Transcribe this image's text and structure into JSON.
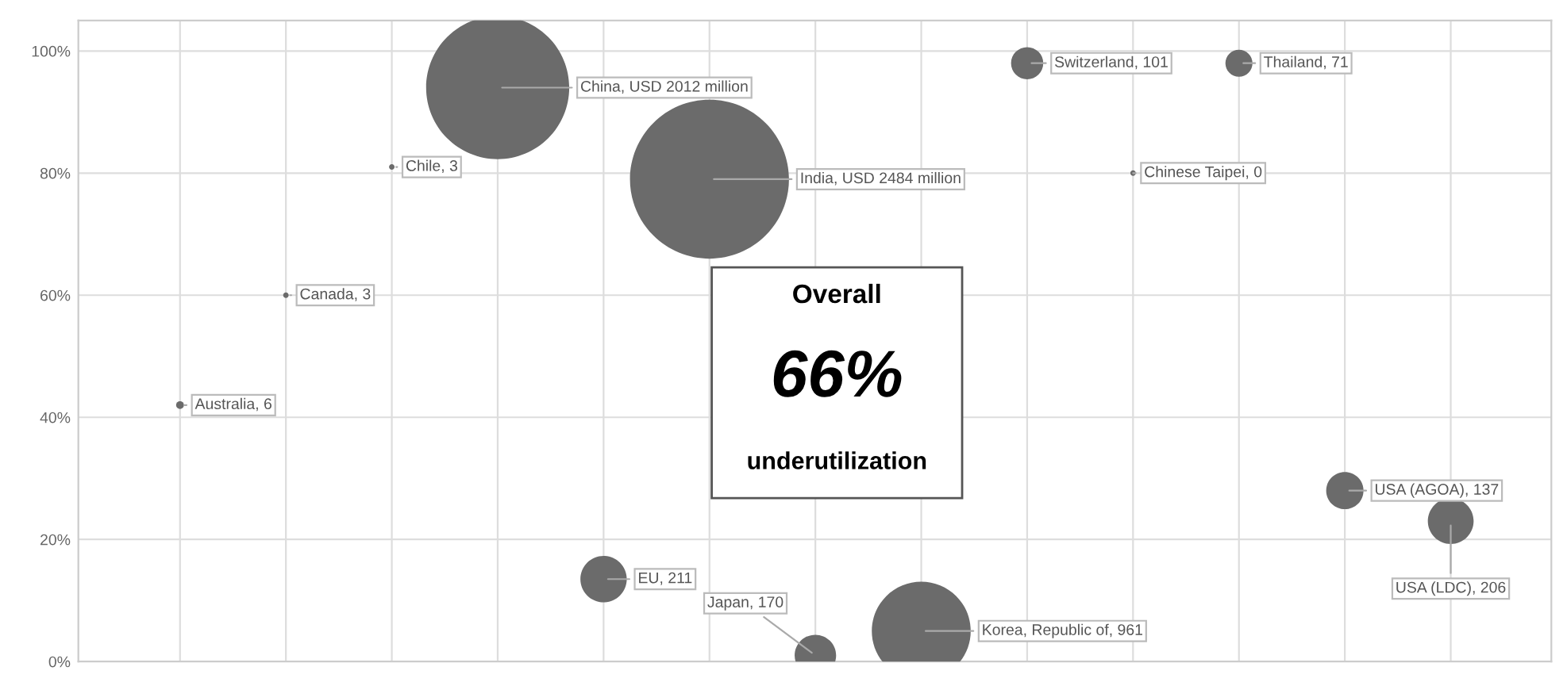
{
  "chart_data": {
    "type": "bubble",
    "categories": [
      null,
      null,
      null,
      null,
      null,
      null,
      null,
      null,
      null,
      null,
      null,
      null,
      null
    ],
    "series": [
      {
        "name": "Australia, 6",
        "color": "#6b6b6b",
        "values": [
          42,
          null,
          null,
          null,
          null,
          null,
          null,
          null,
          null,
          null,
          null,
          null,
          null
        ],
        "sizes": [
          0.0024,
          null,
          null,
          null,
          null,
          null,
          null,
          null,
          null,
          null,
          null,
          null,
          null
        ]
      },
      {
        "name": "Canada, 3",
        "color": "#6b6b6b",
        "values": [
          null,
          60,
          null,
          null,
          null,
          null,
          null,
          null,
          null,
          null,
          null,
          null,
          null
        ],
        "sizes": [
          null,
          0.0012,
          null,
          null,
          null,
          null,
          null,
          null,
          null,
          null,
          null,
          null,
          null
        ]
      },
      {
        "name": "Chile, 3",
        "color": "#6b6b6b",
        "values": [
          null,
          null,
          81,
          null,
          null,
          null,
          null,
          null,
          null,
          null,
          null,
          null,
          null
        ],
        "sizes": [
          null,
          null,
          0.0012,
          null,
          null,
          null,
          null,
          null,
          null,
          null,
          null,
          null,
          null
        ]
      },
      {
        "name": "China, USD 2012 million",
        "color": "#6b6b6b",
        "values": [
          null,
          null,
          null,
          94,
          null,
          null,
          null,
          null,
          null,
          null,
          null,
          null,
          null
        ],
        "sizes": [
          null,
          null,
          null,
          0.81,
          null,
          null,
          null,
          null,
          null,
          null,
          null,
          null,
          null
        ]
      },
      {
        "name": "EU, 211",
        "color": "#6b6b6b",
        "values": [
          null,
          null,
          null,
          null,
          13.5,
          null,
          null,
          null,
          null,
          null,
          null,
          null,
          null
        ],
        "sizes": [
          null,
          null,
          null,
          null,
          0.085,
          null,
          null,
          null,
          null,
          null,
          null,
          null,
          null
        ]
      },
      {
        "name": "India, USD 2484 million",
        "color": "#6b6b6b",
        "values": [
          null,
          null,
          null,
          null,
          null,
          79,
          null,
          null,
          null,
          null,
          null,
          null,
          null
        ],
        "sizes": [
          null,
          null,
          null,
          null,
          null,
          1,
          null,
          null,
          null,
          null,
          null,
          null,
          null
        ]
      },
      {
        "name": "Japan, 170",
        "color": "#6b6b6b",
        "values": [
          null,
          null,
          null,
          null,
          null,
          null,
          1,
          null,
          null,
          null,
          null,
          null,
          null
        ],
        "sizes": [
          null,
          null,
          null,
          null,
          null,
          null,
          0.068,
          null,
          null,
          null,
          null,
          null,
          null
        ]
      },
      {
        "name": "Korea, Republic of, 961",
        "color": "#6b6b6b",
        "values": [
          null,
          null,
          null,
          null,
          null,
          null,
          null,
          5,
          null,
          null,
          null,
          null,
          null
        ],
        "sizes": [
          null,
          null,
          null,
          null,
          null,
          null,
          null,
          0.387,
          null,
          null,
          null,
          null,
          null
        ]
      },
      {
        "name": "Switzerland, 101",
        "color": "#6b6b6b",
        "values": [
          null,
          null,
          null,
          null,
          null,
          null,
          null,
          null,
          98,
          null,
          null,
          null,
          null
        ],
        "sizes": [
          null,
          null,
          null,
          null,
          null,
          null,
          null,
          null,
          0.041,
          null,
          null,
          null,
          null
        ]
      },
      {
        "name": "Chinese Taipei, 0",
        "color": "#6b6b6b",
        "values": [
          null,
          null,
          null,
          null,
          null,
          null,
          null,
          null,
          null,
          80,
          null,
          null,
          null
        ],
        "sizes": [
          null,
          null,
          null,
          null,
          null,
          null,
          null,
          null,
          null,
          null,
          null,
          null,
          null
        ]
      },
      {
        "name": "Thailand, 71",
        "color": "#6b6b6b",
        "values": [
          null,
          null,
          null,
          null,
          null,
          null,
          null,
          null,
          null,
          null,
          98,
          null,
          null
        ],
        "sizes": [
          null,
          null,
          null,
          null,
          null,
          null,
          null,
          null,
          null,
          null,
          0.029,
          null,
          null
        ]
      },
      {
        "name": "USA (AGOA), 137",
        "color": "#6b6b6b",
        "values": [
          null,
          null,
          null,
          null,
          null,
          null,
          null,
          null,
          null,
          null,
          null,
          28,
          null
        ],
        "sizes": [
          null,
          null,
          null,
          null,
          null,
          null,
          null,
          null,
          null,
          null,
          null,
          0.055,
          null
        ]
      },
      {
        "name": "USA (LDC), 206",
        "color": "#6b6b6b",
        "values": [
          null,
          null,
          null,
          null,
          null,
          null,
          null,
          null,
          null,
          null,
          null,
          null,
          23
        ],
        "sizes": [
          null,
          null,
          null,
          null,
          null,
          null,
          null,
          null,
          null,
          null,
          null,
          null,
          0.083
        ]
      }
    ],
    "ylim": [
      0,
      105
    ],
    "yticks": [
      {
        "value": 0,
        "label": "0%"
      },
      {
        "value": 20,
        "label": "20%"
      },
      {
        "value": 40,
        "label": "40%"
      },
      {
        "value": 60,
        "label": "60%"
      },
      {
        "value": 80,
        "label": "80%"
      },
      {
        "value": 100,
        "label": "100%"
      }
    ],
    "grid": true,
    "annotations": [
      "Overall",
      "66%",
      "underutilization"
    ]
  }
}
